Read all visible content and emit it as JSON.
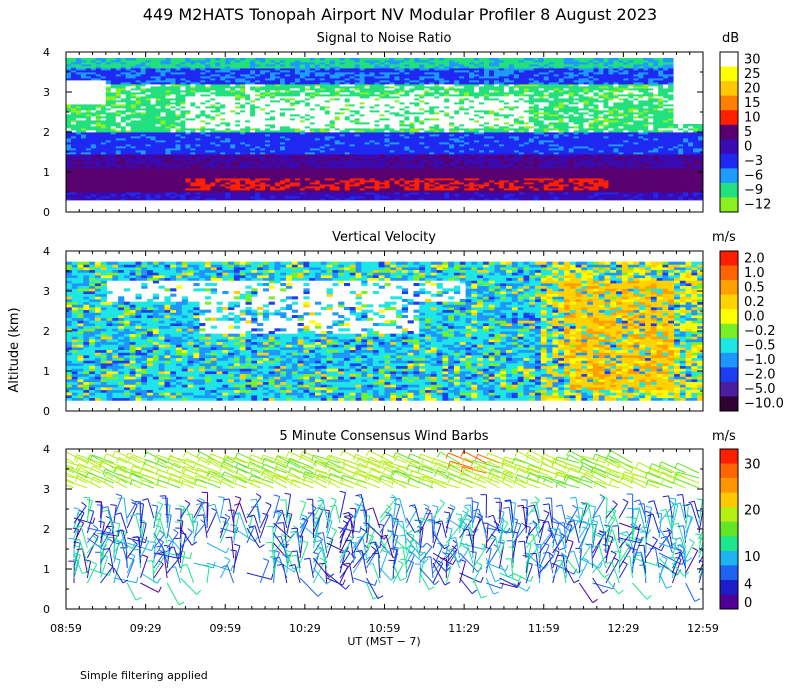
{
  "title": "449 M2HATS Tonopah Airport NV Modular Profiler  8 August 2023",
  "ylabel": "Altitude (km)",
  "xlabel": "UT  (MST − 7)",
  "footnote": "Simple filtering applied",
  "time_ticks": [
    "08:59",
    "09:29",
    "09:59",
    "10:29",
    "10:59",
    "11:29",
    "11:59",
    "12:29",
    "12:59"
  ],
  "alt_ticks": [
    "0",
    "1",
    "2",
    "3",
    "4"
  ],
  "chart_data": [
    {
      "type": "heatmap",
      "title": "Signal to Noise Ratio",
      "units": "dB",
      "xlim_hours_ut": [
        8.983,
        12.983
      ],
      "ylim_km": [
        0,
        4
      ],
      "colorbar": {
        "labels": [
          "30",
          "25",
          "20",
          "15",
          "10",
          "5",
          "0",
          "−3",
          "−6",
          "−9",
          "−12"
        ],
        "colors": [
          "#ffffff",
          "#ffff00",
          "#ffc800",
          "#ff7f00",
          "#ff2000",
          "#580070",
          "#3a0bb0",
          "#1e28f0",
          "#1e9bff",
          "#23e07e",
          "#8cf020"
        ]
      },
      "profile_summary": [
        {
          "band_km": [
            0.3,
            0.5
          ],
          "value_db": 0
        },
        {
          "band_km": [
            0.5,
            1.4
          ],
          "value_db": 5
        },
        {
          "band_km": [
            1.4,
            2.0
          ],
          "value_db": -3
        },
        {
          "band_km": [
            2.0,
            3.2
          ],
          "value_db": -9
        },
        {
          "band_km": [
            3.2,
            3.8
          ],
          "value_db": -6
        }
      ]
    },
    {
      "type": "heatmap",
      "title": "Vertical Velocity",
      "units": "m/s",
      "xlim_hours_ut": [
        8.983,
        12.983
      ],
      "ylim_km": [
        0,
        4
      ],
      "colorbar": {
        "labels": [
          "2.0",
          "1.0",
          "0.5",
          "0.2",
          "0.0",
          "−0.2",
          "−0.5",
          "−1.0",
          "−2.0",
          "−5.0",
          "−10.0"
        ],
        "colors": [
          "#ff1e00",
          "#ff6400",
          "#ffa000",
          "#ffd200",
          "#ffff00",
          "#78f028",
          "#1ee6e6",
          "#1e96ff",
          "#1e3cf0",
          "#4a1ea0",
          "#320032"
        ]
      },
      "profile_summary": [
        {
          "time_range": [
            "08:59",
            "11:59"
          ],
          "value_ms": -0.5
        },
        {
          "time_range": [
            "11:59",
            "12:59"
          ],
          "value_ms": 0.2
        }
      ]
    },
    {
      "type": "wind_barbs",
      "title": "5 Minute Consensus Wind Barbs",
      "units": "m/s",
      "xlim_hours_ut": [
        8.983,
        12.983
      ],
      "ylim_km": [
        0,
        4
      ],
      "colorbar": {
        "labels": [
          "30",
          "20",
          "10",
          "4",
          "0"
        ],
        "label_positions": [
          30,
          20,
          10,
          4,
          0
        ],
        "colors": [
          "#ff1e00",
          "#ff6400",
          "#ff9600",
          "#ffc800",
          "#b4f014",
          "#64e628",
          "#1ee68c",
          "#1eb4f0",
          "#1e64f0",
          "#1e1ec8",
          "#500096"
        ]
      },
      "layers": [
        {
          "alt_km": [
            3.0,
            3.7
          ],
          "speed_ms": 12,
          "dir_deg": 240
        },
        {
          "alt_km": [
            0.6,
            2.3
          ],
          "speed_ms": 5,
          "dir_deg": 160
        }
      ]
    }
  ]
}
